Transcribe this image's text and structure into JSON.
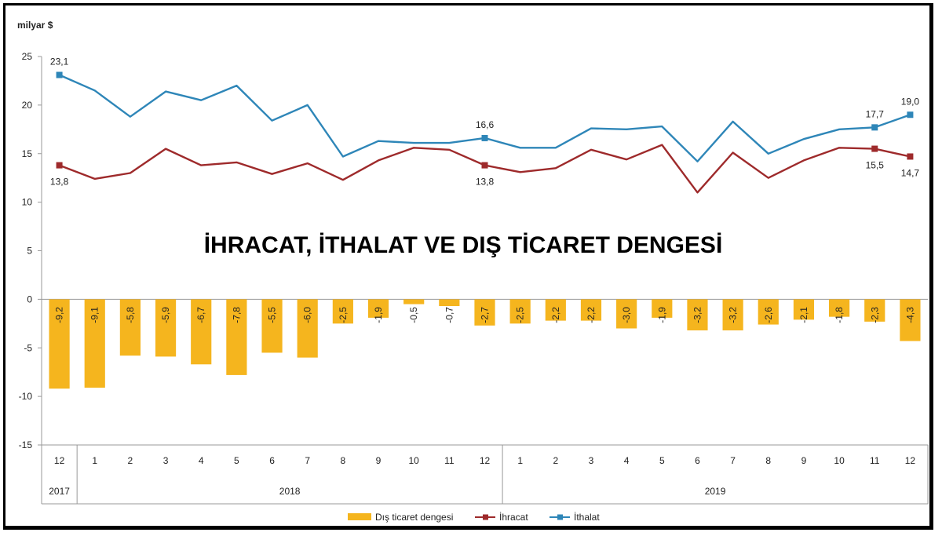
{
  "chart_data": {
    "type": "bar+line",
    "title": "İHRACAT, İTHALAT VE DIŞ TİCARET DENGESİ",
    "unit_label": "milyar $",
    "ylim": [
      -15,
      25
    ],
    "yticks": [
      -15,
      -10,
      -5,
      0,
      5,
      10,
      15,
      20,
      25
    ],
    "grid": false,
    "legend_position": "bottom",
    "categories": [
      "12",
      "1",
      "2",
      "3",
      "4",
      "5",
      "6",
      "7",
      "8",
      "9",
      "10",
      "11",
      "12",
      "1",
      "2",
      "3",
      "4",
      "5",
      "6",
      "7",
      "8",
      "9",
      "10",
      "11",
      "12"
    ],
    "year_groups": [
      {
        "label": "2017",
        "count": 1
      },
      {
        "label": "2018",
        "count": 12
      },
      {
        "label": "2019",
        "count": 12
      }
    ],
    "series": [
      {
        "name": "Dış ticaret dengesi",
        "kind": "bar",
        "color": "#F5B51E",
        "values": [
          -9.2,
          -9.1,
          -5.8,
          -5.9,
          -6.7,
          -7.8,
          -5.5,
          -6.0,
          -2.5,
          -1.9,
          -0.5,
          -0.7,
          -2.7,
          -2.5,
          -2.2,
          -2.2,
          -3.0,
          -1.9,
          -3.2,
          -3.2,
          -2.6,
          -2.1,
          -1.8,
          -2.3,
          -4.3
        ],
        "labels": [
          "-9,2",
          "-9,1",
          "-5,8",
          "-5,9",
          "-6,7",
          "-7,8",
          "-5,5",
          "-6,0",
          "-2,5",
          "-1,9",
          "-0,5",
          "-0,7",
          "-2,7",
          "-2,5",
          "-2,2",
          "-2,2",
          "-3,0",
          "-1,9",
          "-3,2",
          "-3,2",
          "-2,6",
          "-2,1",
          "-1,8",
          "-2,3",
          "-4,3"
        ]
      },
      {
        "name": "İhracat",
        "kind": "line",
        "color": "#9E2A2B",
        "values": [
          13.8,
          12.4,
          13.0,
          15.5,
          13.8,
          14.1,
          12.9,
          14.0,
          12.3,
          14.3,
          15.6,
          15.4,
          13.8,
          13.1,
          13.5,
          15.4,
          14.4,
          15.9,
          11.0,
          15.1,
          12.5,
          14.3,
          15.6,
          15.5,
          14.7
        ],
        "labeled_points": [
          {
            "index": 0,
            "text": "13,8"
          },
          {
            "index": 12,
            "text": "13,8"
          },
          {
            "index": 23,
            "text": "15,5"
          },
          {
            "index": 24,
            "text": "14,7"
          }
        ]
      },
      {
        "name": "İthalat",
        "kind": "line",
        "color": "#2E86B8",
        "values": [
          23.1,
          21.5,
          18.8,
          21.4,
          20.5,
          22.0,
          18.4,
          20.0,
          14.7,
          16.3,
          16.1,
          16.1,
          16.6,
          15.6,
          15.6,
          17.6,
          17.5,
          17.8,
          14.2,
          18.3,
          15.0,
          16.5,
          17.5,
          17.7,
          19.0
        ],
        "labeled_points": [
          {
            "index": 0,
            "text": "23,1"
          },
          {
            "index": 12,
            "text": "16,6"
          },
          {
            "index": 23,
            "text": "17,7"
          },
          {
            "index": 24,
            "text": "19,0"
          }
        ]
      }
    ]
  }
}
